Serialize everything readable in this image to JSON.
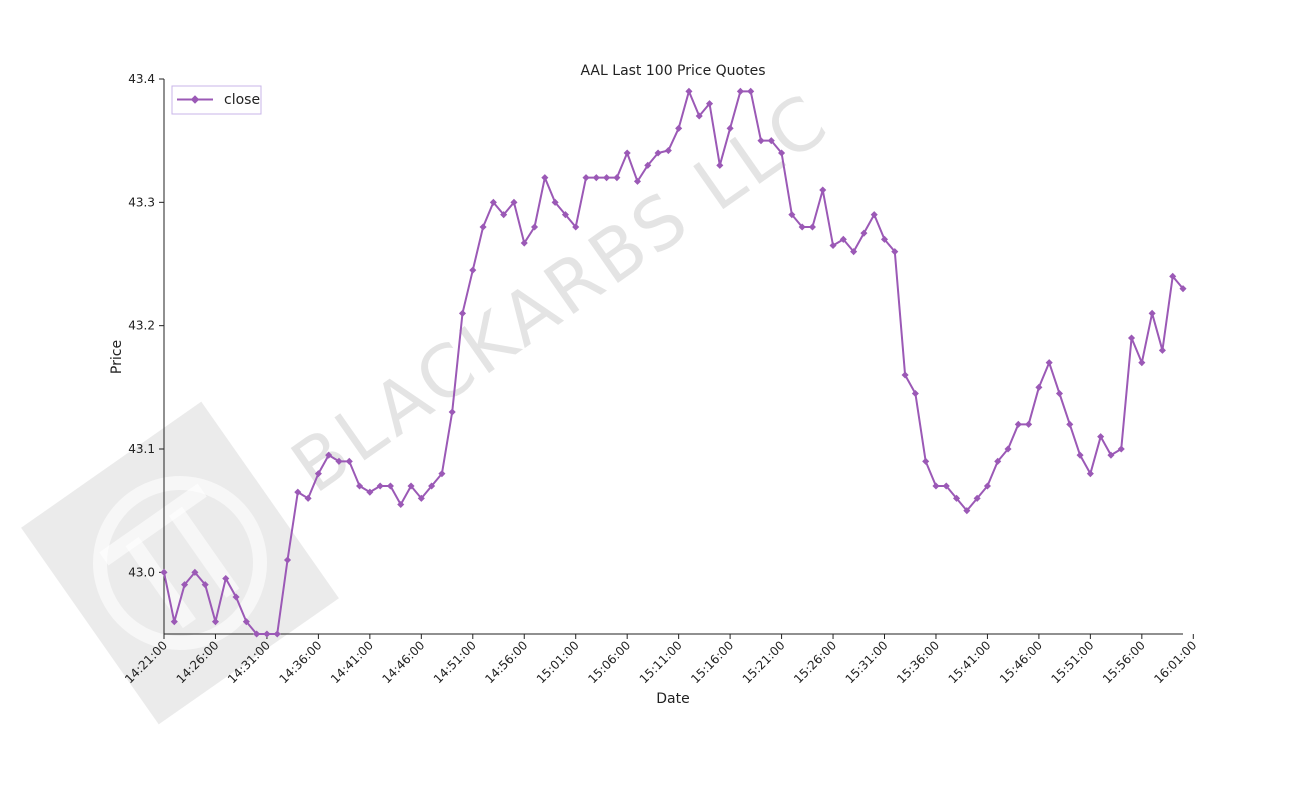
{
  "chart_data": {
    "type": "line",
    "title": "AAL Last 100 Price Quotes",
    "xlabel": "Date",
    "ylabel": "Price",
    "ylim": [
      42.95,
      43.4
    ],
    "yticks": [
      "43.0",
      "43.1",
      "43.2",
      "43.3",
      "43.4"
    ],
    "ytick_values": [
      43.0,
      43.1,
      43.2,
      43.3,
      43.4
    ],
    "x_tick_labels": [
      "14:21:00",
      "14:26:00",
      "14:31:00",
      "14:36:00",
      "14:41:00",
      "14:46:00",
      "14:51:00",
      "14:56:00",
      "15:01:00",
      "15:06:00",
      "15:11:00",
      "15:16:00",
      "15:21:00",
      "15:26:00",
      "15:31:00",
      "15:36:00",
      "15:41:00",
      "15:46:00",
      "15:51:00",
      "15:56:00",
      "16:01:00"
    ],
    "x_start": "14:21:00",
    "x_interval": "1 min",
    "x_end": "16:01:00",
    "legend": "top-left",
    "grid": false,
    "series": [
      {
        "name": "close",
        "color": "#9b59b6",
        "marker": "diamond",
        "values": [
          43.0,
          42.96,
          42.99,
          43.0,
          42.99,
          42.96,
          42.995,
          42.98,
          42.96,
          42.95,
          42.95,
          42.95,
          43.01,
          43.065,
          43.06,
          43.08,
          43.095,
          43.09,
          43.09,
          43.07,
          43.065,
          43.07,
          43.07,
          43.055,
          43.07,
          43.06,
          43.07,
          43.08,
          43.13,
          43.21,
          43.245,
          43.28,
          43.3,
          43.29,
          43.3,
          43.267,
          43.28,
          43.32,
          43.3,
          43.29,
          43.28,
          43.32,
          43.32,
          43.32,
          43.32,
          43.34,
          43.317,
          43.33,
          43.34,
          43.342,
          43.36,
          43.39,
          43.37,
          43.38,
          43.33,
          43.36,
          43.39,
          43.39,
          43.35,
          43.35,
          43.34,
          43.29,
          43.28,
          43.28,
          43.31,
          43.265,
          43.27,
          43.26,
          43.275,
          43.29,
          43.27,
          43.26,
          43.16,
          43.145,
          43.09,
          43.07,
          43.07,
          43.06,
          43.05,
          43.06,
          43.07,
          43.09,
          43.1,
          43.12,
          43.12,
          43.15,
          43.17,
          43.145,
          43.12,
          43.095,
          43.08,
          43.11,
          43.095,
          43.1,
          43.19,
          43.17,
          43.21,
          43.18,
          43.24,
          43.23
        ]
      }
    ]
  },
  "watermark": {
    "text": "BLACKARBS LLC",
    "logo": "pi-logo"
  }
}
